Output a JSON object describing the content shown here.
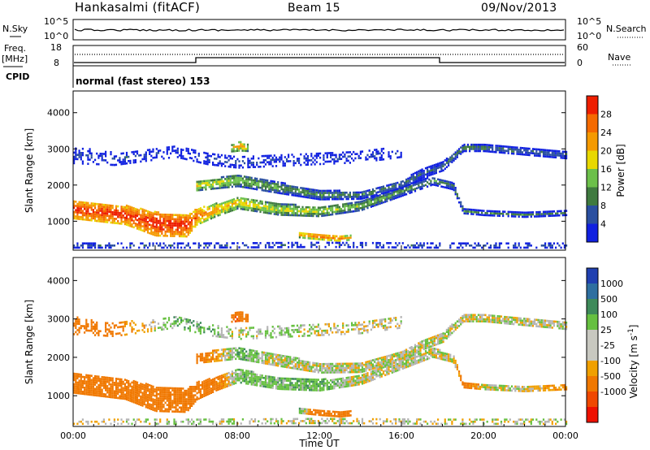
{
  "header": {
    "station": "Hankasalmi (fitACF)",
    "beam": "Beam 15",
    "date": "09/Nov/2013"
  },
  "info_panels": {
    "nsky_label": "N.Sky",
    "nsky_ticks": [
      "10^5",
      "10^0"
    ],
    "nsearch_label": "N.Search",
    "nsearch_ticks": [
      "10^5",
      "10^0"
    ],
    "freq_label": "Freq.",
    "freq_unit": "[MHz]",
    "freq_ticks": [
      "18",
      "8"
    ],
    "nave_label": "Nave",
    "nave_ticks": [
      "60",
      "0"
    ],
    "cpid_label": "CPID",
    "cpid_text": "normal (fast stereo) 153"
  },
  "colors": {
    "power": [
      "#1020e0",
      "#2a4fa0",
      "#3f7a3f",
      "#6cc04a",
      "#e8d800",
      "#f59a00",
      "#f56a00",
      "#ee1e00"
    ],
    "velocity": [
      "#2040b0",
      "#2e6fa0",
      "#3e8a5a",
      "#66c040",
      "#c8c8c0",
      "#c8c8c0",
      "#f0a000",
      "#f07800",
      "#f04800",
      "#ee1000"
    ],
    "ground_scatter": "#b4b4b4"
  },
  "chart_data": [
    {
      "type": "heatmap",
      "panel": "power",
      "ylabel": "Slant Range [km]",
      "yticks": [
        "1000",
        "2000",
        "3000",
        "4000"
      ],
      "ylim": [
        200,
        4600
      ],
      "xlim": [
        0,
        24
      ],
      "colorbar": {
        "label": "Power [dB]",
        "ticks": [
          "4",
          "8",
          "12",
          "16",
          "20",
          "24",
          "28"
        ],
        "range": [
          0,
          32
        ]
      },
      "bands": [
        {
          "x": [
            0,
            2.5,
            4,
            5.5,
            6,
            7,
            8,
            10,
            12,
            14,
            16,
            17.5,
            18.5,
            19,
            20,
            22,
            24
          ],
          "y": [
            1300,
            1150,
            900,
            850,
            1100,
            1300,
            1500,
            1300,
            1250,
            1400,
            1800,
            2100,
            1950,
            1250,
            1200,
            1150,
            1200
          ],
          "thick": [
            500,
            520,
            650,
            600,
            450,
            350,
            350,
            300,
            280,
            250,
            250,
            230,
            200,
            120,
            120,
            120,
            120
          ],
          "power": [
            30,
            30,
            31,
            31,
            27,
            22,
            20,
            18,
            17,
            15,
            12,
            11,
            10,
            12,
            10,
            10,
            9
          ]
        },
        {
          "x": [
            6,
            8,
            10,
            12,
            14,
            16,
            17,
            18,
            19,
            20,
            22,
            24
          ],
          "y": [
            1950,
            2100,
            1900,
            1700,
            1700,
            2000,
            2300,
            2500,
            3000,
            3000,
            2900,
            2800
          ],
          "thick": [
            250,
            320,
            300,
            250,
            220,
            220,
            250,
            250,
            180,
            180,
            180,
            180
          ],
          "power": [
            20,
            16,
            13,
            12,
            11,
            10,
            9,
            9,
            12,
            11,
            9,
            9
          ]
        },
        {
          "x": [
            0,
            2,
            5,
            6.5,
            8,
            10,
            12,
            14,
            16
          ],
          "y": [
            2800,
            2700,
            2900,
            2700,
            2600,
            2650,
            2700,
            2750,
            2900
          ],
          "thick": [
            450,
            350,
            300,
            300,
            300,
            300,
            300,
            300,
            300
          ],
          "power": [
            6,
            6,
            5,
            6,
            7,
            6,
            6,
            6,
            6
          ]
        },
        {
          "x": [
            11,
            12,
            13,
            13.5
          ],
          "y": [
            600,
            550,
            500,
            520
          ],
          "thick": [
            150,
            160,
            140,
            120
          ],
          "power": [
            22,
            28,
            26,
            20
          ]
        },
        {
          "x": [
            7.7,
            8.1,
            8.5
          ],
          "y": [
            3000,
            3050,
            3000
          ],
          "thick": [
            200,
            250,
            180
          ],
          "power": [
            20,
            24,
            18
          ]
        },
        {
          "x": [
            0,
            6,
            12,
            18,
            24
          ],
          "y": [
            300,
            300,
            320,
            300,
            300
          ],
          "thick": [
            120,
            120,
            120,
            120,
            120
          ],
          "power": [
            6,
            7,
            6,
            6,
            6
          ]
        }
      ]
    },
    {
      "type": "heatmap",
      "panel": "velocity",
      "ylabel": "Slant Range [km]",
      "yticks": [
        "1000",
        "2000",
        "3000",
        "4000"
      ],
      "ylim": [
        200,
        4600
      ],
      "xlim": [
        0,
        24
      ],
      "xticks": [
        "00:00",
        "04:00",
        "08:00",
        "12:00",
        "16:00",
        "20:00",
        "00:00"
      ],
      "xlabel": "Time UT",
      "colorbar": {
        "label": "Velocity [m s^-1]",
        "ticks": [
          "1000",
          "500",
          "100",
          "25",
          "-25",
          "-100",
          "-500",
          "-1000"
        ],
        "range": [
          -1250,
          1250
        ]
      },
      "bands": [
        {
          "x": [
            0,
            2.5,
            4,
            5.5,
            6,
            7,
            8,
            10,
            12,
            14,
            16,
            17.5,
            18.5,
            19,
            20,
            22,
            24
          ],
          "y": [
            1300,
            1150,
            900,
            850,
            1100,
            1300,
            1500,
            1300,
            1250,
            1400,
            1800,
            2100,
            1950,
            1250,
            1200,
            1150,
            1200
          ],
          "thick": [
            500,
            520,
            650,
            600,
            450,
            350,
            350,
            300,
            280,
            250,
            250,
            230,
            200,
            120,
            120,
            120,
            120
          ],
          "vel": [
            -300,
            -350,
            -400,
            -380,
            -250,
            -150,
            50,
            60,
            80,
            0,
            0,
            0,
            0,
            -200,
            0,
            0,
            -150
          ]
        },
        {
          "x": [
            6,
            8,
            10,
            12,
            14,
            16,
            17,
            18,
            19,
            20,
            22,
            24
          ],
          "y": [
            1950,
            2100,
            1900,
            1700,
            1700,
            2000,
            2300,
            2500,
            3000,
            3000,
            2900,
            2800
          ],
          "thick": [
            250,
            320,
            300,
            250,
            220,
            220,
            250,
            250,
            180,
            180,
            180,
            180
          ],
          "vel": [
            -200,
            80,
            0,
            0,
            0,
            0,
            0,
            0,
            0,
            0,
            0,
            0
          ]
        },
        {
          "x": [
            0,
            2,
            5,
            6.5,
            8,
            10,
            12,
            14,
            16
          ],
          "y": [
            2800,
            2700,
            2900,
            2700,
            2600,
            2650,
            2700,
            2750,
            2900
          ],
          "thick": [
            450,
            350,
            300,
            300,
            300,
            300,
            300,
            300,
            300
          ],
          "vel": [
            -300,
            -150,
            60,
            80,
            0,
            50,
            0,
            0,
            0
          ]
        },
        {
          "x": [
            11,
            12,
            13,
            13.5
          ],
          "y": [
            600,
            550,
            500,
            520
          ],
          "thick": [
            150,
            160,
            140,
            120
          ],
          "vel": [
            80,
            -250,
            -300,
            -200
          ]
        },
        {
          "x": [
            7.7,
            8.1,
            8.5
          ],
          "y": [
            3000,
            3050,
            3000
          ],
          "thick": [
            200,
            250,
            180
          ],
          "vel": [
            -500,
            -450,
            -300
          ]
        },
        {
          "x": [
            0,
            6,
            12,
            18,
            24
          ],
          "y": [
            300,
            300,
            320,
            300,
            300
          ],
          "thick": [
            120,
            120,
            120,
            120,
            120
          ],
          "vel": [
            -50,
            40,
            0,
            0,
            0
          ]
        }
      ]
    }
  ]
}
